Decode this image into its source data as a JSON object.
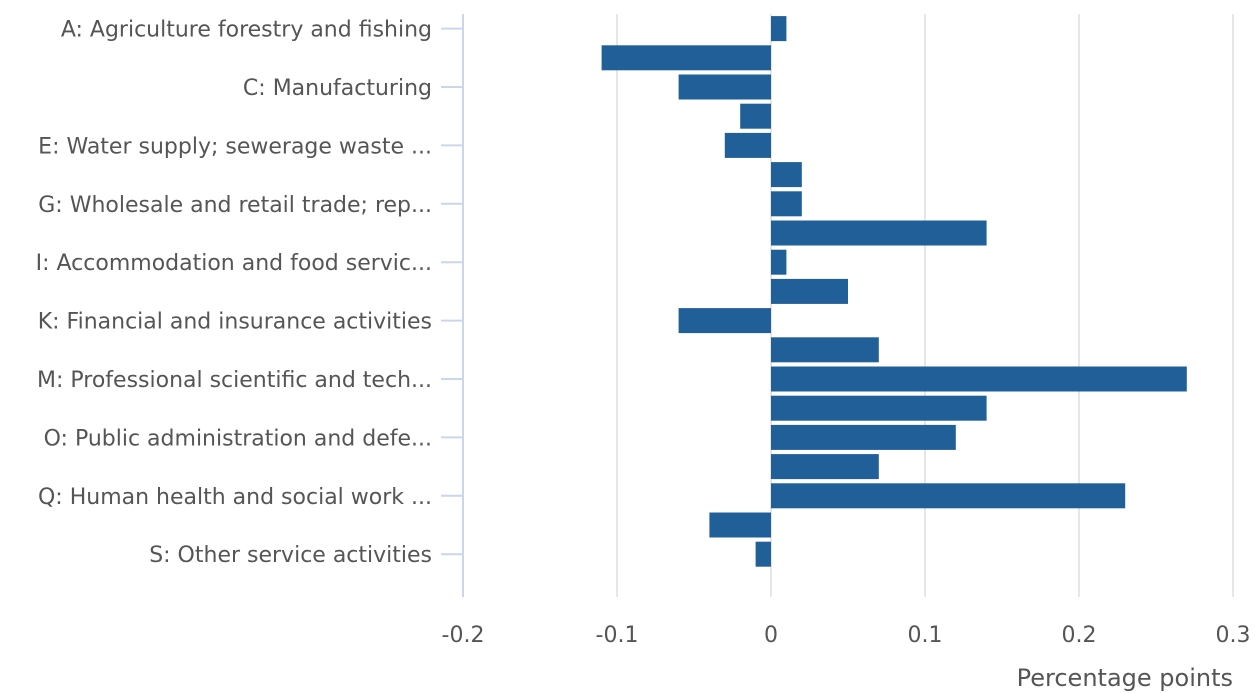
{
  "chart_data": {
    "type": "bar",
    "orientation": "horizontal",
    "title": "",
    "xlabel": "Percentage points",
    "ylabel": "",
    "xlim": [
      -0.2,
      0.3
    ],
    "x_ticks": [
      "-0.2",
      "-0.1",
      "0",
      "0.1",
      "0.2",
      "0.3"
    ],
    "grid": "vertical",
    "bar_color": "#215f98",
    "category_labels": [
      "A: Agriculture forestry and fishing",
      "C: Manufacturing",
      "E: Water supply; sewerage waste ...",
      "G: Wholesale and retail trade; rep...",
      "I: Accommodation and food servic...",
      "K: Financial and insurance activities",
      "M: Professional scientific and tech...",
      "O: Public administration and defe...",
      "Q: Human health and social work ...",
      "S: Other service activities"
    ],
    "values": [
      0.01,
      -0.11,
      -0.06,
      -0.02,
      -0.03,
      0.02,
      0.02,
      0.14,
      0.01,
      0.05,
      -0.06,
      0.07,
      0.27,
      0.14,
      0.12,
      0.07,
      0.23,
      -0.04,
      -0.01
    ]
  }
}
